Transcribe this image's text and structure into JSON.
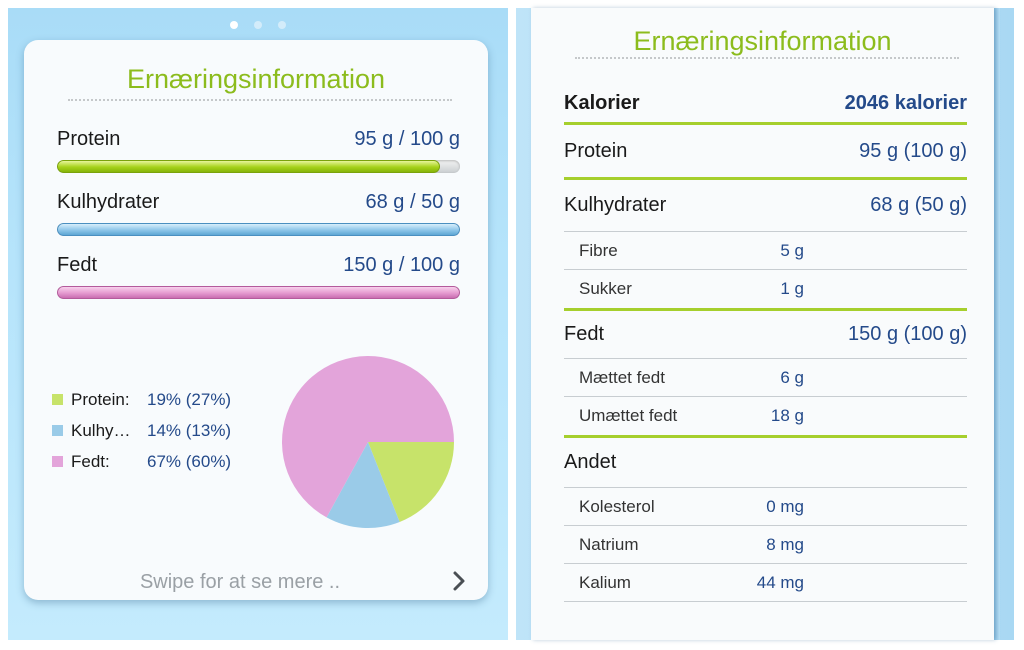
{
  "summary": {
    "title": "Ernæringsinformation",
    "macros": [
      {
        "name": "Protein",
        "value": "95 g / 100 g",
        "fraction": 0.95
      },
      {
        "name": "Kulhydrater",
        "value": "68 g / 50 g",
        "fraction": 1.0
      },
      {
        "name": "Fedt",
        "value": "150 g / 100 g",
        "fraction": 1.0
      }
    ],
    "legend": [
      {
        "name": "Protein:",
        "pct": "19% (27%)",
        "color": "#c7e36a"
      },
      {
        "name": "Kulhy…",
        "pct": "14% (13%)",
        "color": "#9acbe8"
      },
      {
        "name": "Fedt:",
        "pct": "67% (60%)",
        "color": "#e3a4da"
      }
    ],
    "swipe_label": "Swipe for at se mere ..",
    "page_dots": 3,
    "active_dot": 0
  },
  "chart_data": {
    "type": "pie",
    "labels": [
      "Protein",
      "Kulhydrater",
      "Fedt"
    ],
    "values": [
      19,
      14,
      67
    ],
    "colors": [
      "#c7e36a",
      "#9acbe8",
      "#e3a4da"
    ]
  },
  "details": {
    "title": "Ernæringsinformation",
    "calories": {
      "name": "Kalorier",
      "value": "2046 kalorier"
    },
    "protein": {
      "name": "Protein",
      "value": "95 g (100 g)"
    },
    "carbs": {
      "name": "Kulhydrater",
      "value": "68 g (50 g)"
    },
    "fibre": {
      "name": "Fibre",
      "value": "5 g"
    },
    "sugar": {
      "name": "Sukker",
      "value": "1 g"
    },
    "fat": {
      "name": "Fedt",
      "value": "150 g (100 g)"
    },
    "saturated": {
      "name": "Mættet fedt",
      "value": "6 g"
    },
    "unsaturated": {
      "name": "Umættet fedt",
      "value": "18 g"
    },
    "other": {
      "name": "Andet"
    },
    "cholesterol": {
      "name": "Kolesterol",
      "value": "0 mg"
    },
    "sodium": {
      "name": "Natrium",
      "value": "8 mg"
    },
    "potassium": {
      "name": "Kalium",
      "value": "44 mg"
    }
  },
  "colors": {
    "accent_green": "#8cbc1d",
    "value_blue": "#244a8a",
    "background_blue": "#b6e4fb"
  }
}
